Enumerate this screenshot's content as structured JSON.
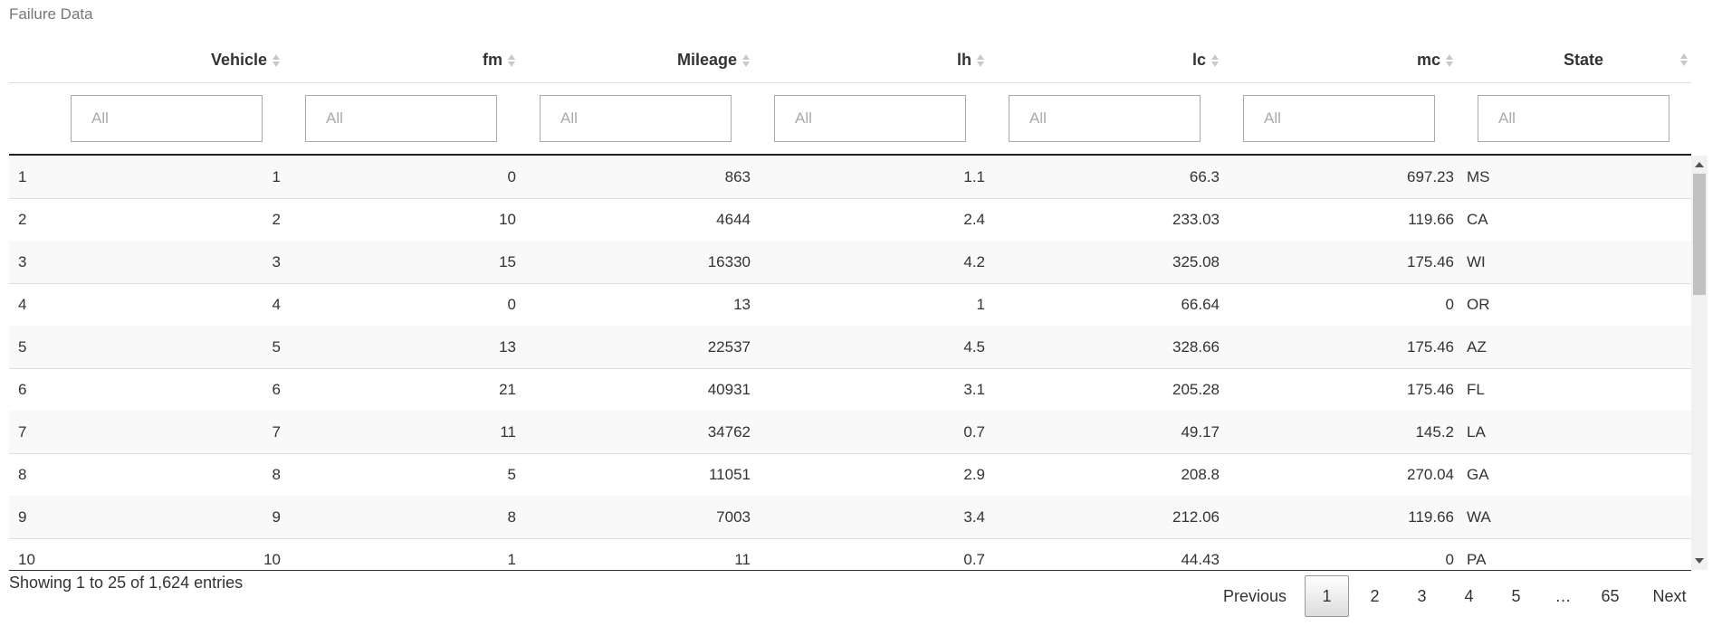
{
  "caption": "Failure Data",
  "columns": [
    {
      "label": "Vehicle",
      "sortable": true
    },
    {
      "label": "fm",
      "sortable": true
    },
    {
      "label": "Mileage",
      "sortable": true
    },
    {
      "label": "lh",
      "sortable": true
    },
    {
      "label": "lc",
      "sortable": true
    },
    {
      "label": "mc",
      "sortable": true
    },
    {
      "label": "State",
      "sortable": true
    }
  ],
  "filter_placeholder": "All",
  "rows": [
    {
      "index": "1",
      "vehicle": "1",
      "fm": "0",
      "mileage": "863",
      "lh": "1.1",
      "lc": "66.3",
      "mc": "697.23",
      "state": "MS"
    },
    {
      "index": "2",
      "vehicle": "2",
      "fm": "10",
      "mileage": "4644",
      "lh": "2.4",
      "lc": "233.03",
      "mc": "119.66",
      "state": "CA"
    },
    {
      "index": "3",
      "vehicle": "3",
      "fm": "15",
      "mileage": "16330",
      "lh": "4.2",
      "lc": "325.08",
      "mc": "175.46",
      "state": "WI"
    },
    {
      "index": "4",
      "vehicle": "4",
      "fm": "0",
      "mileage": "13",
      "lh": "1",
      "lc": "66.64",
      "mc": "0",
      "state": "OR"
    },
    {
      "index": "5",
      "vehicle": "5",
      "fm": "13",
      "mileage": "22537",
      "lh": "4.5",
      "lc": "328.66",
      "mc": "175.46",
      "state": "AZ"
    },
    {
      "index": "6",
      "vehicle": "6",
      "fm": "21",
      "mileage": "40931",
      "lh": "3.1",
      "lc": "205.28",
      "mc": "175.46",
      "state": "FL"
    },
    {
      "index": "7",
      "vehicle": "7",
      "fm": "11",
      "mileage": "34762",
      "lh": "0.7",
      "lc": "49.17",
      "mc": "145.2",
      "state": "LA"
    },
    {
      "index": "8",
      "vehicle": "8",
      "fm": "5",
      "mileage": "11051",
      "lh": "2.9",
      "lc": "208.8",
      "mc": "270.04",
      "state": "GA"
    },
    {
      "index": "9",
      "vehicle": "9",
      "fm": "8",
      "mileage": "7003",
      "lh": "3.4",
      "lc": "212.06",
      "mc": "119.66",
      "state": "WA"
    },
    {
      "index": "10",
      "vehicle": "10",
      "fm": "1",
      "mileage": "11",
      "lh": "0.7",
      "lc": "44.43",
      "mc": "0",
      "state": "PA"
    }
  ],
  "info": "Showing 1 to 25 of 1,624 entries",
  "pagination": {
    "previous": "Previous",
    "pages": [
      "1",
      "2",
      "3",
      "4",
      "5",
      "…",
      "65"
    ],
    "current": "1",
    "next": "Next"
  }
}
